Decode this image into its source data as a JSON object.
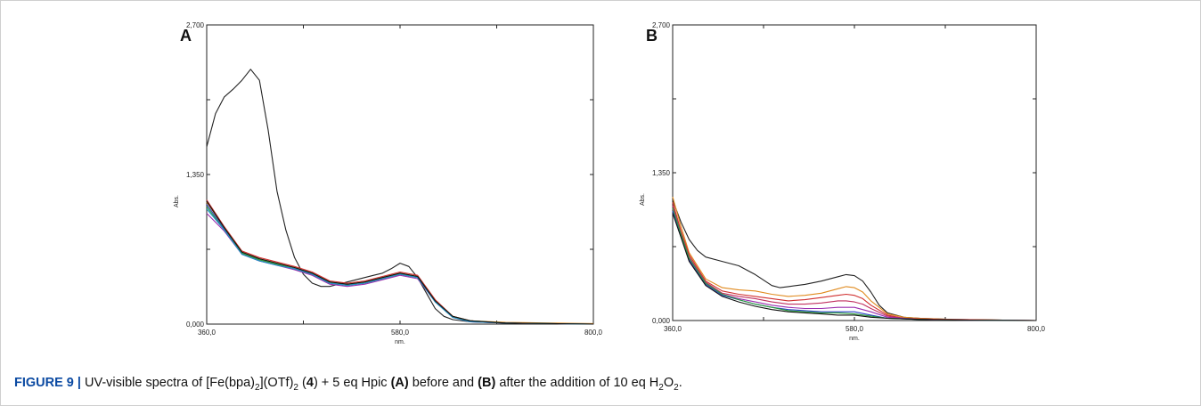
{
  "chart_data": [
    {
      "type": "line",
      "panel_label": "A",
      "ylabel": "Abs.",
      "xlabel": "nm.",
      "x_ticks": [
        "360,0",
        "580,0",
        "800,0"
      ],
      "y_ticks": [
        "0,000",
        "1,350",
        "2,700"
      ],
      "xlim": [
        360,
        800
      ],
      "ylim": [
        0,
        2.7
      ],
      "grid": false,
      "series": [
        {
          "color": "#222222",
          "x": [
            360,
            370,
            380,
            390,
            400,
            410,
            420,
            430,
            440,
            450,
            460,
            470,
            480,
            490,
            500,
            510,
            520,
            530,
            540,
            550,
            560,
            570,
            580,
            590,
            600,
            610,
            620,
            630,
            640,
            660,
            700,
            750,
            800
          ],
          "y": [
            1.6,
            1.9,
            2.05,
            2.12,
            2.2,
            2.3,
            2.2,
            1.75,
            1.2,
            0.85,
            0.6,
            0.45,
            0.37,
            0.34,
            0.34,
            0.36,
            0.38,
            0.4,
            0.42,
            0.44,
            0.46,
            0.5,
            0.55,
            0.52,
            0.42,
            0.28,
            0.14,
            0.07,
            0.04,
            0.02,
            0.01,
            0.005,
            0.0
          ]
        },
        {
          "color": "#d03030",
          "x": [
            360,
            380,
            400,
            420,
            440,
            460,
            480,
            500,
            520,
            540,
            560,
            580,
            600,
            620,
            640,
            660,
            700,
            800
          ],
          "y": [
            1.12,
            0.88,
            0.66,
            0.6,
            0.56,
            0.52,
            0.47,
            0.39,
            0.37,
            0.39,
            0.43,
            0.47,
            0.44,
            0.22,
            0.07,
            0.03,
            0.01,
            0.0
          ]
        },
        {
          "color": "#2a3fc8",
          "x": [
            360,
            380,
            400,
            420,
            440,
            460,
            480,
            500,
            520,
            540,
            560,
            580,
            600,
            620,
            640,
            660,
            700,
            800
          ],
          "y": [
            1.08,
            0.86,
            0.64,
            0.58,
            0.54,
            0.5,
            0.45,
            0.37,
            0.35,
            0.37,
            0.41,
            0.45,
            0.42,
            0.2,
            0.06,
            0.03,
            0.01,
            0.0
          ]
        },
        {
          "color": "#e08a1e",
          "x": [
            360,
            380,
            400,
            420,
            440,
            460,
            480,
            500,
            520,
            540,
            560,
            580,
            600,
            620,
            640,
            660,
            700,
            800
          ],
          "y": [
            1.1,
            0.87,
            0.65,
            0.59,
            0.55,
            0.51,
            0.46,
            0.38,
            0.36,
            0.38,
            0.42,
            0.46,
            0.43,
            0.21,
            0.07,
            0.03,
            0.015,
            0.005
          ]
        },
        {
          "color": "#9a2fb0",
          "x": [
            360,
            380,
            400,
            420,
            440,
            460,
            480,
            500,
            520,
            540,
            560,
            580,
            600,
            620,
            640,
            660,
            700,
            800
          ],
          "y": [
            1.0,
            0.84,
            0.63,
            0.57,
            0.53,
            0.49,
            0.44,
            0.36,
            0.34,
            0.36,
            0.4,
            0.44,
            0.41,
            0.2,
            0.06,
            0.02,
            0.01,
            0.0
          ]
        },
        {
          "color": "#2a9d3a",
          "x": [
            360,
            380,
            400,
            420,
            440,
            460,
            480,
            500,
            520,
            540,
            560,
            580,
            600,
            620,
            640,
            660,
            700,
            800
          ],
          "y": [
            1.06,
            0.85,
            0.64,
            0.58,
            0.54,
            0.5,
            0.45,
            0.37,
            0.35,
            0.37,
            0.41,
            0.45,
            0.42,
            0.2,
            0.06,
            0.03,
            0.01,
            0.0
          ]
        },
        {
          "color": "#1e8fc8",
          "x": [
            360,
            380,
            400,
            420,
            440,
            460,
            480,
            500,
            520,
            540,
            560,
            580,
            600,
            620,
            640,
            660,
            700,
            800
          ],
          "y": [
            1.04,
            0.85,
            0.63,
            0.57,
            0.53,
            0.5,
            0.45,
            0.37,
            0.35,
            0.37,
            0.41,
            0.45,
            0.42,
            0.2,
            0.06,
            0.02,
            0.01,
            0.0
          ]
        },
        {
          "color": "#111111",
          "x": [
            360,
            380,
            400,
            420,
            440,
            460,
            480,
            500,
            520,
            540,
            560,
            580,
            600,
            620,
            640,
            660,
            700,
            800
          ],
          "y": [
            1.11,
            0.87,
            0.65,
            0.59,
            0.55,
            0.51,
            0.46,
            0.38,
            0.36,
            0.38,
            0.42,
            0.46,
            0.43,
            0.21,
            0.07,
            0.03,
            0.01,
            0.0
          ]
        }
      ]
    },
    {
      "type": "line",
      "panel_label": "B",
      "ylabel": "Abs.",
      "xlabel": "nm.",
      "x_ticks": [
        "360,0",
        "580,0",
        "800,0"
      ],
      "y_ticks": [
        "0,000",
        "1,350",
        "2,700"
      ],
      "xlim": [
        360,
        800
      ],
      "ylim": [
        0,
        2.7
      ],
      "grid": false,
      "series": [
        {
          "color": "#222222",
          "x": [
            360,
            370,
            380,
            390,
            400,
            420,
            440,
            460,
            480,
            490,
            500,
            520,
            540,
            560,
            570,
            580,
            590,
            600,
            610,
            620,
            640,
            660,
            700,
            750,
            800
          ],
          "y": [
            1.1,
            0.9,
            0.74,
            0.64,
            0.58,
            0.54,
            0.5,
            0.42,
            0.32,
            0.3,
            0.31,
            0.33,
            0.36,
            0.4,
            0.42,
            0.41,
            0.36,
            0.26,
            0.14,
            0.07,
            0.03,
            0.02,
            0.01,
            0.005,
            0.0
          ]
        },
        {
          "color": "#e08a1e",
          "x": [
            360,
            370,
            380,
            400,
            420,
            440,
            460,
            480,
            500,
            520,
            540,
            560,
            570,
            580,
            590,
            600,
            620,
            640,
            660,
            700,
            800
          ],
          "y": [
            1.13,
            0.86,
            0.62,
            0.38,
            0.3,
            0.28,
            0.27,
            0.24,
            0.22,
            0.23,
            0.25,
            0.29,
            0.31,
            0.3,
            0.26,
            0.18,
            0.06,
            0.03,
            0.02,
            0.01,
            0.0
          ]
        },
        {
          "color": "#d03030",
          "x": [
            360,
            370,
            380,
            400,
            420,
            440,
            460,
            480,
            500,
            520,
            540,
            560,
            570,
            580,
            590,
            600,
            620,
            640,
            660,
            700,
            800
          ],
          "y": [
            1.08,
            0.82,
            0.6,
            0.36,
            0.27,
            0.24,
            0.22,
            0.2,
            0.18,
            0.19,
            0.21,
            0.23,
            0.24,
            0.23,
            0.2,
            0.14,
            0.05,
            0.02,
            0.015,
            0.01,
            0.0
          ]
        },
        {
          "color": "#c03060",
          "x": [
            360,
            370,
            380,
            400,
            420,
            440,
            460,
            480,
            500,
            520,
            540,
            560,
            570,
            580,
            590,
            600,
            620,
            640,
            660,
            700,
            800
          ],
          "y": [
            1.05,
            0.8,
            0.58,
            0.35,
            0.25,
            0.22,
            0.2,
            0.17,
            0.15,
            0.15,
            0.16,
            0.18,
            0.18,
            0.17,
            0.15,
            0.11,
            0.04,
            0.02,
            0.01,
            0.005,
            0.0
          ]
        },
        {
          "color": "#9a2fb0",
          "x": [
            360,
            370,
            380,
            400,
            420,
            440,
            460,
            480,
            500,
            520,
            540,
            560,
            580,
            600,
            620,
            660,
            700,
            800
          ],
          "y": [
            1.02,
            0.78,
            0.56,
            0.34,
            0.24,
            0.2,
            0.17,
            0.14,
            0.12,
            0.11,
            0.11,
            0.12,
            0.12,
            0.08,
            0.03,
            0.01,
            0.005,
            0.0
          ]
        },
        {
          "color": "#2a3fc8",
          "x": [
            360,
            370,
            380,
            400,
            420,
            440,
            460,
            480,
            500,
            520,
            540,
            560,
            580,
            600,
            620,
            660,
            700,
            800
          ],
          "y": [
            1.0,
            0.77,
            0.55,
            0.33,
            0.23,
            0.19,
            0.15,
            0.12,
            0.1,
            0.09,
            0.08,
            0.08,
            0.08,
            0.05,
            0.02,
            0.01,
            0.005,
            0.0
          ]
        },
        {
          "color": "#2a9d3a",
          "x": [
            360,
            370,
            380,
            400,
            420,
            440,
            460,
            480,
            500,
            520,
            540,
            560,
            580,
            600,
            620,
            660,
            700,
            800
          ],
          "y": [
            1.03,
            0.79,
            0.57,
            0.34,
            0.24,
            0.19,
            0.15,
            0.12,
            0.09,
            0.08,
            0.07,
            0.07,
            0.06,
            0.04,
            0.02,
            0.01,
            0.005,
            0.0
          ]
        },
        {
          "color": "#111111",
          "x": [
            360,
            370,
            380,
            400,
            420,
            440,
            460,
            480,
            500,
            520,
            540,
            560,
            580,
            600,
            620,
            660,
            700,
            800
          ],
          "y": [
            0.98,
            0.76,
            0.54,
            0.32,
            0.22,
            0.17,
            0.13,
            0.1,
            0.08,
            0.07,
            0.06,
            0.05,
            0.05,
            0.03,
            0.02,
            0.01,
            0.005,
            0.0
          ]
        }
      ]
    }
  ],
  "caption": {
    "figure_label": "FIGURE 9 |",
    "text_1": "UV-visible spectra of [Fe(bpa)",
    "sub_1": "2",
    "text_2": "](OTf)",
    "sub_2": "2",
    "text_3": "(",
    "bold_4": "4",
    "text_5": ") + 5 eq Hpic",
    "bold_A": "(A)",
    "text_6": "before and",
    "bold_B": "(B)",
    "text_7": "after the addition of 10 eq H",
    "sub_3": "2",
    "text_8": "O",
    "sub_4": "2",
    "text_9": "."
  }
}
